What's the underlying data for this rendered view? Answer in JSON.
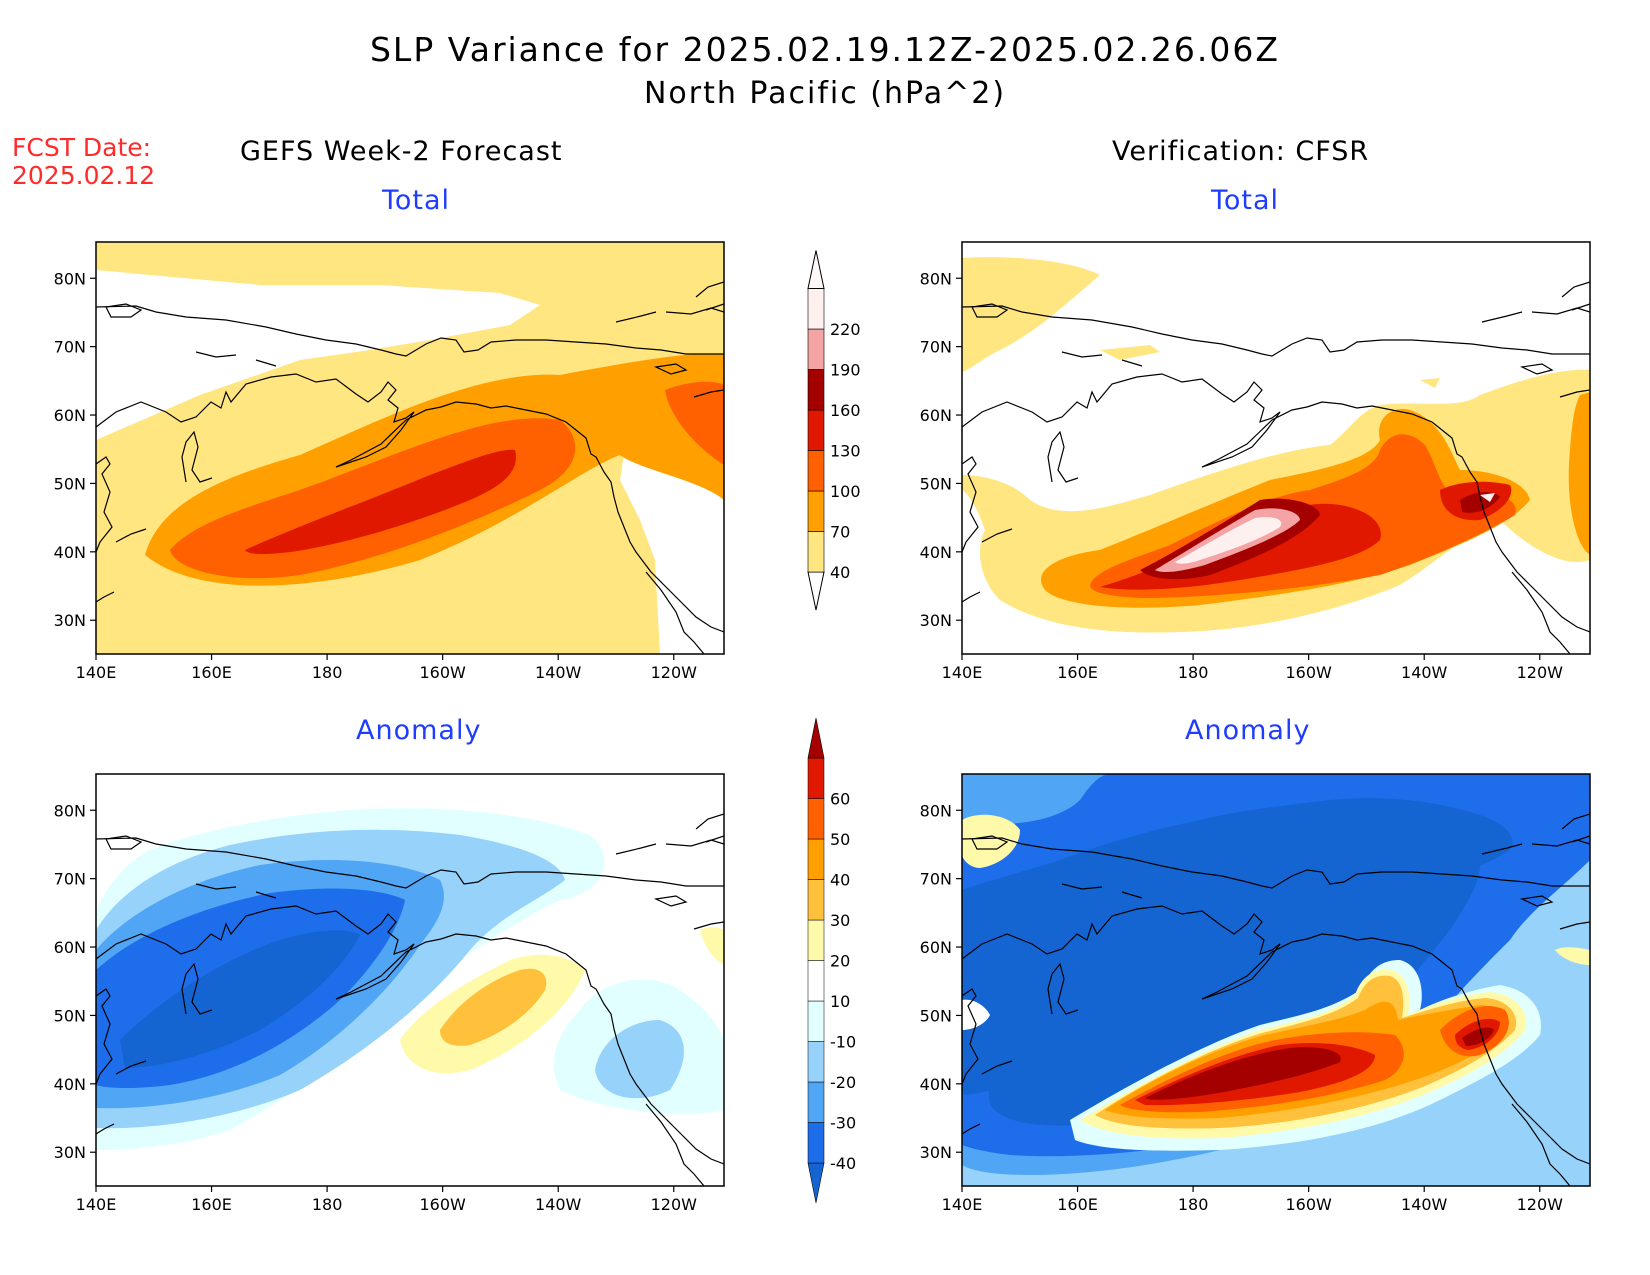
{
  "header": {
    "title": "SLP Variance for 2025.02.19.12Z-2025.02.26.06Z",
    "subtitle": "North Pacific (hPa^2)",
    "fcst_line1": "FCST Date:",
    "fcst_line2": "2025.02.12"
  },
  "columns": {
    "left_title": "GEFS Week-2 Forecast",
    "right_title": "Verification: CFSR"
  },
  "panels": {
    "fcst_total_label": "Total",
    "cfsr_total_label": "Total",
    "fcst_anom_label": "Anomaly",
    "cfsr_anom_label": "Anomaly"
  },
  "axes": {
    "lat_labels": [
      "80N",
      "70N",
      "60N",
      "50N",
      "40N",
      "30N"
    ],
    "lon_labels": [
      "140E",
      "160E",
      "180",
      "160W",
      "140W",
      "120W"
    ]
  },
  "colorbars": {
    "total": {
      "levels": [
        "40",
        "70",
        "100",
        "130",
        "160",
        "190",
        "220"
      ],
      "colors": [
        "#ffe680",
        "#ffa000",
        "#ff6000",
        "#e11800",
        "#a50000",
        "#f4a4a4",
        "#fff0f0"
      ]
    },
    "anomaly": {
      "levels": [
        "-40",
        "-30",
        "-20",
        "-10",
        "10",
        "20",
        "30",
        "40",
        "50",
        "60"
      ],
      "colors": [
        "#1464d2",
        "#1e6eeb",
        "#50a5f5",
        "#96d2fa",
        "#e1ffff",
        "#ffffff",
        "#fffaaa",
        "#ffc03c",
        "#ffa000",
        "#ff6000",
        "#e11800",
        "#a50000"
      ]
    }
  }
}
